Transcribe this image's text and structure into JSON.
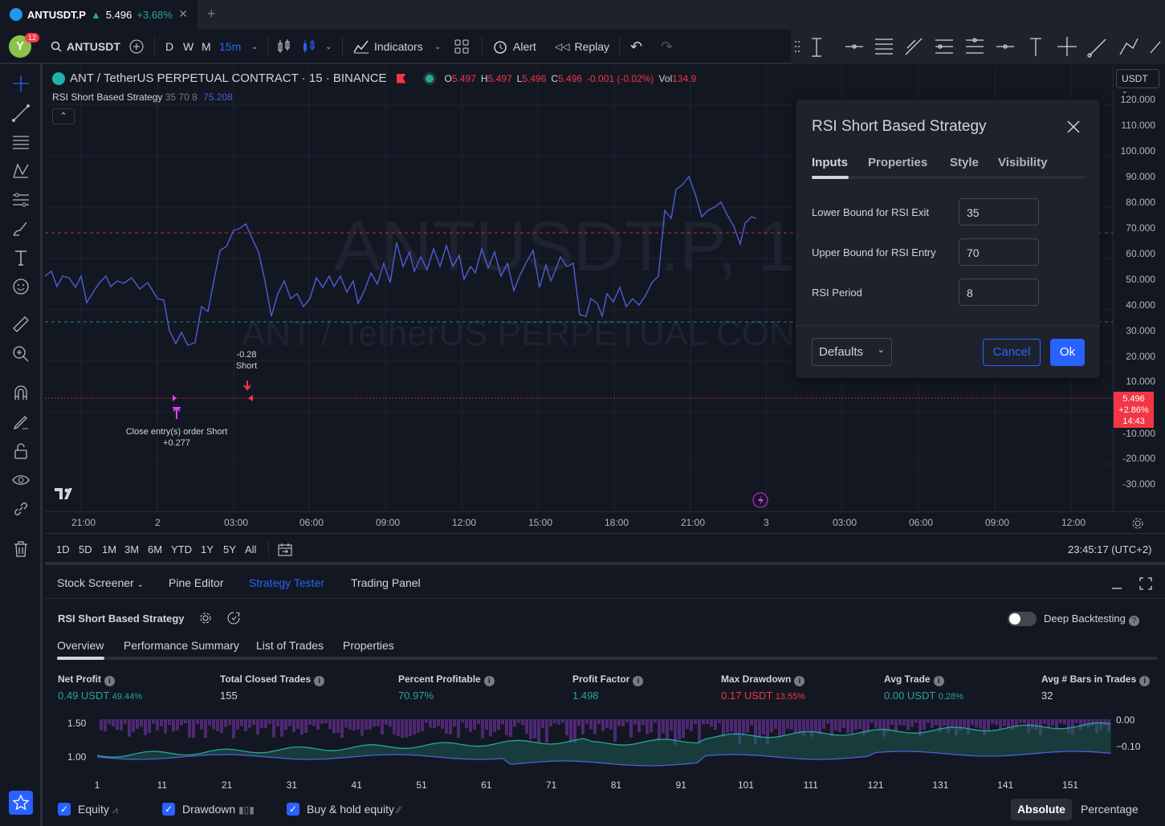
{
  "tab": {
    "symbol": "ANTUSDT.P",
    "arrow": "▲",
    "price": "5.496",
    "change": "+3.68%"
  },
  "toolbar": {
    "avatar_letter": "Y",
    "notif_count": "12",
    "symbol": "ANTUSDT",
    "intervals": [
      "D",
      "W",
      "M",
      "15m"
    ],
    "indicators_label": "Indicators",
    "alert_label": "Alert",
    "replay_label": "Replay"
  },
  "legend": {
    "title": "ANT / TetherUS PERPETUAL CONTRACT · 15 · BINANCE",
    "o_label": "O",
    "o": "5.497",
    "h_label": "H",
    "h": "5.497",
    "l_label": "L",
    "l": "5.496",
    "c_label": "C",
    "c": "5.496",
    "chg": "-0.001 (-0.02%)",
    "vol_label": "Vol",
    "vol": "134.9",
    "strategy_name": "RSI Short Based Strategy",
    "strategy_params": "35 70 8",
    "strategy_value": "75.208"
  },
  "watermark": {
    "symbol": "ANTUSDT.P, 15",
    "name": "ANT / TetherUS PERPETUAL CONTRACT"
  },
  "markers": {
    "short_value": "-0.28",
    "short_label": "Short",
    "close_label": "Close entry(s) order Short",
    "close_value": "+0.277"
  },
  "price_axis": {
    "currency": "USDT",
    "labels": [
      "120.000",
      "110.000",
      "100.000",
      "90.000",
      "80.000",
      "70.000",
      "60.000",
      "50.000",
      "40.000",
      "30.000",
      "20.000",
      "10.000",
      "-10.000",
      "-20.000",
      "-30.000"
    ],
    "current_price": "5.496",
    "current_change": "+2.86%",
    "countdown": "14:43"
  },
  "time_axis": {
    "labels": [
      "21:00",
      "2",
      "03:00",
      "06:00",
      "09:00",
      "12:00",
      "15:00",
      "18:00",
      "21:00",
      "3",
      "03:00",
      "06:00",
      "09:00",
      "12:00"
    ]
  },
  "ranges": {
    "items": [
      "1D",
      "5D",
      "1M",
      "3M",
      "6M",
      "YTD",
      "1Y",
      "5Y",
      "All"
    ],
    "clock": "23:45:17 (UTC+2)"
  },
  "dialog": {
    "title": "RSI Short Based Strategy",
    "tabs": [
      "Inputs",
      "Properties",
      "Style",
      "Visibility"
    ],
    "fields": [
      {
        "label": "Lower Bound for RSI Exit",
        "value": "35"
      },
      {
        "label": "Upper Bound for RSI Entry",
        "value": "70"
      },
      {
        "label": "RSI Period",
        "value": "8"
      }
    ],
    "defaults_label": "Defaults",
    "cancel_label": "Cancel",
    "ok_label": "Ok"
  },
  "panel": {
    "tabs": [
      "Stock Screener",
      "Pine Editor",
      "Strategy Tester",
      "Trading Panel"
    ],
    "strategy_name": "RSI Short Based Strategy",
    "deep_backtesting": "Deep Backtesting",
    "subtabs": [
      "Overview",
      "Performance Summary",
      "List of Trades",
      "Properties"
    ],
    "stats": [
      {
        "label": "Net Profit",
        "value": "0.49 USDT",
        "sub": "49.44%"
      },
      {
        "label": "Total Closed Trades",
        "value": "155",
        "sub": ""
      },
      {
        "label": "Percent Profitable",
        "value": "70.97%",
        "sub": ""
      },
      {
        "label": "Profit Factor",
        "value": "1.498",
        "sub": ""
      },
      {
        "label": "Max Drawdown",
        "value": "0.17 USDT",
        "sub": "13.55%"
      },
      {
        "label": "Avg Trade",
        "value": "0.00 USDT",
        "sub": "0.28%"
      },
      {
        "label": "Avg # Bars in Trades",
        "value": "32",
        "sub": ""
      }
    ],
    "left_axis": [
      "1.50",
      "1.00"
    ],
    "right_axis": [
      "0.00",
      "−0.10"
    ],
    "x_axis": [
      "1",
      "11",
      "21",
      "31",
      "41",
      "51",
      "61",
      "71",
      "81",
      "91",
      "101",
      "111",
      "121",
      "131",
      "141",
      "151"
    ],
    "legend": [
      "Equity",
      "Drawdown",
      "Buy & hold equity"
    ],
    "modes": [
      "Absolute",
      "Percentage"
    ]
  },
  "colors": {
    "accent": "#2962ff",
    "up": "#26a69a",
    "down": "#f23645",
    "rsi": "#4c5fd5"
  }
}
